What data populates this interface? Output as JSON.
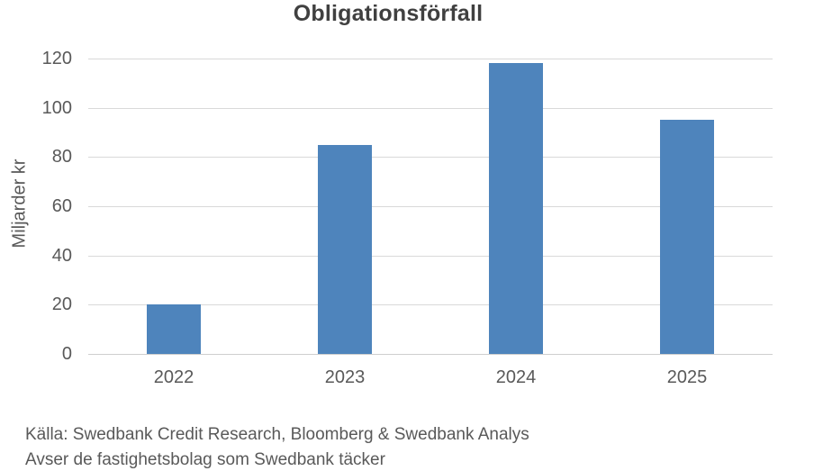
{
  "chart_data": {
    "type": "bar",
    "title": "Obligationsförfall",
    "categories": [
      "2022",
      "2023",
      "2024",
      "2025"
    ],
    "values": [
      20,
      85,
      118,
      95
    ],
    "xlabel": "",
    "ylabel": "Miljarder kr",
    "ylim": [
      0,
      120
    ],
    "yticks": [
      0,
      20,
      40,
      60,
      80,
      100,
      120
    ],
    "grid": true,
    "legend": "none",
    "bar_color": "#4e84bc"
  },
  "footer": {
    "line1": "Källa: Swedbank Credit Research, Bloomberg & Swedbank Analys",
    "line2": "Avser de fastighetsbolag som Swedbank täcker"
  },
  "colors": {
    "bar": "#4e84bc",
    "gridline": "#d9d9d9",
    "axis_text": "#595959",
    "title_text": "#404040"
  }
}
